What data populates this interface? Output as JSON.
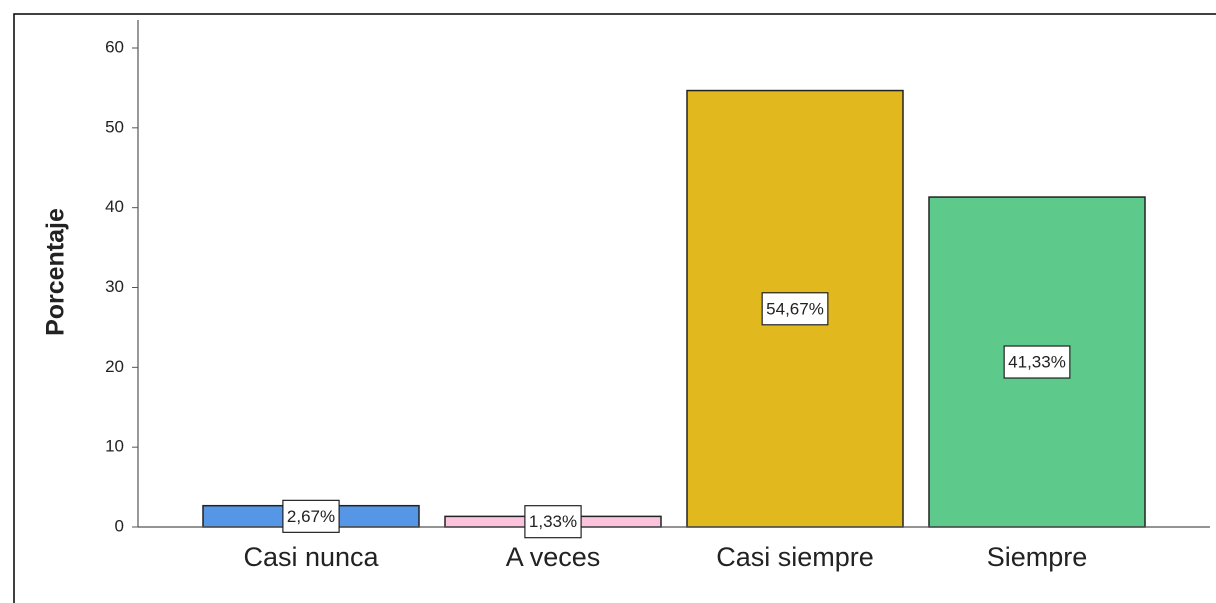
{
  "chart_data": {
    "type": "bar",
    "y_label": "Porcentaje",
    "categories": [
      "Casi nunca",
      "A veces",
      "Casi siempre",
      "Siempre"
    ],
    "values": [
      2.67,
      1.33,
      54.67,
      41.33
    ],
    "value_labels": [
      "2,67%",
      "1,33%",
      "54,67%",
      "41,33%"
    ],
    "colors": [
      "#5596e6",
      "#fbc3de",
      "#e1b91e",
      "#5dc98b"
    ],
    "ylim": [
      0,
      60
    ],
    "yticks": [
      0,
      10,
      20,
      30,
      40,
      50,
      60
    ]
  }
}
